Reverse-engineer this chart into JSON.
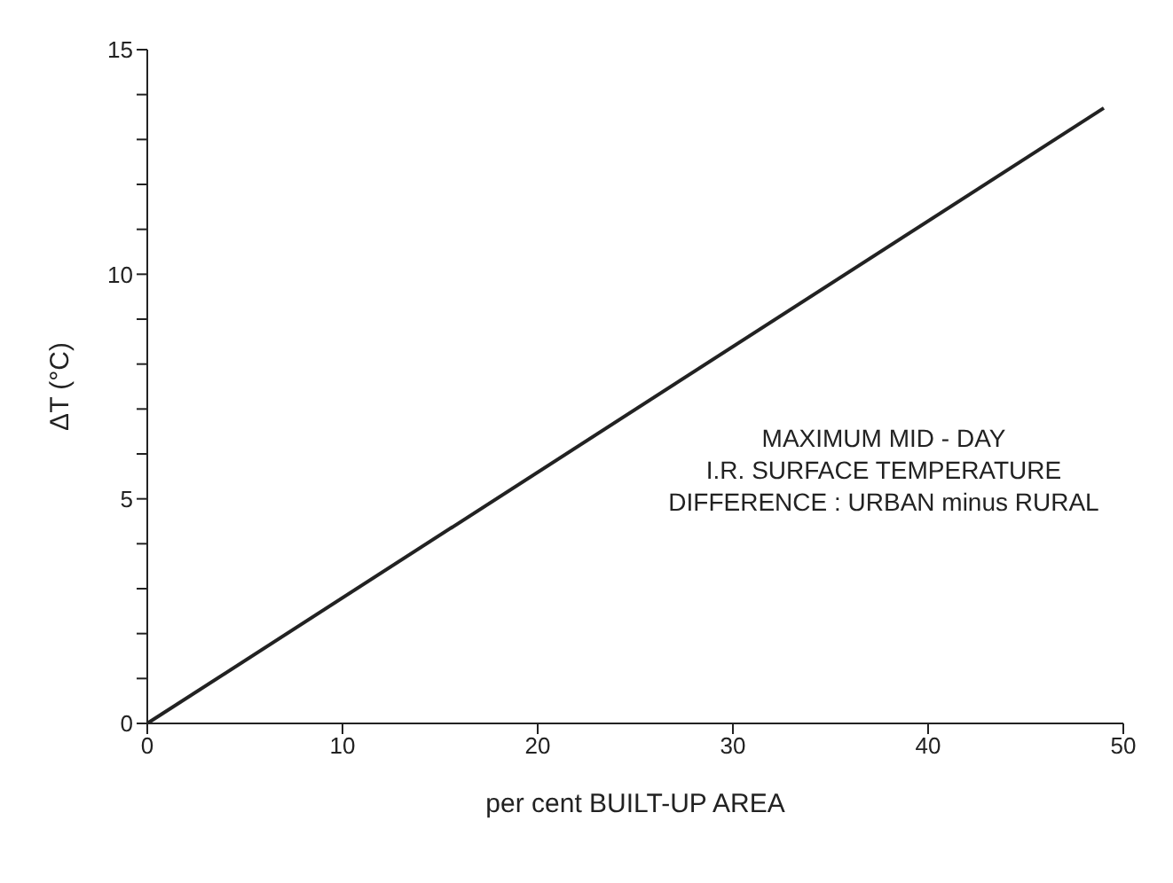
{
  "chart_data": {
    "type": "line",
    "xlabel": "per cent  BUILT-UP AREA",
    "ylabel": "ΔT (°C)",
    "annotations": [
      "MAXIMUM  MID - DAY",
      "I.R. SURFACE TEMPERATURE",
      "DIFFERENCE : URBAN minus RURAL"
    ],
    "x": [
      0,
      49
    ],
    "series": [
      {
        "color": "#222222",
        "values": [
          0,
          13.7
        ]
      }
    ],
    "xlim": [
      0,
      50
    ],
    "xticks": [
      0,
      10,
      20,
      30,
      40,
      50
    ],
    "ylim": [
      0,
      15
    ],
    "yticks": [
      0,
      {
        "value": 1,
        "label": null
      },
      {
        "value": 2,
        "label": null
      },
      {
        "value": 3,
        "label": null
      },
      {
        "value": 4,
        "label": null
      },
      5,
      {
        "value": 6,
        "label": null
      },
      {
        "value": 7,
        "label": null
      },
      {
        "value": 8,
        "label": null
      },
      {
        "value": 9,
        "label": null
      },
      10,
      {
        "value": 11,
        "label": null
      },
      {
        "value": 12,
        "label": null
      },
      {
        "value": 13,
        "label": null
      },
      {
        "value": 14,
        "label": null
      },
      15
    ],
    "marker": "none",
    "line_style": "solid",
    "grid": false,
    "legend": false
  }
}
